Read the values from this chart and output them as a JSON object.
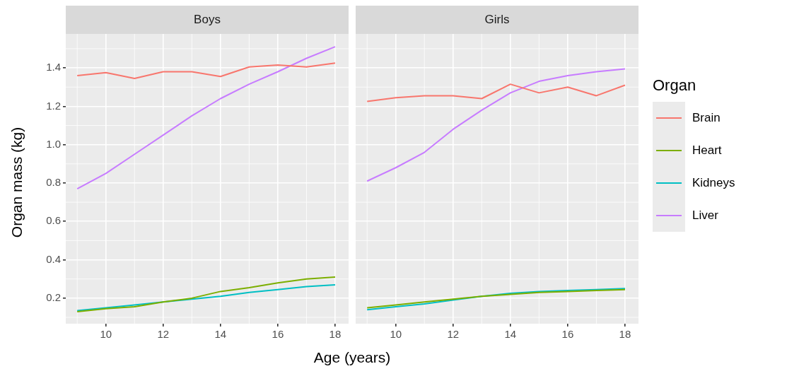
{
  "chart_data": [
    {
      "type": "line",
      "title": "Boys",
      "xlabel": "Age (years)",
      "ylabel": "Organ mass (kg)",
      "x": [
        9,
        10,
        11,
        12,
        13,
        14,
        15,
        16,
        17,
        18
      ],
      "xlim": [
        8.6,
        18.47
      ],
      "ylim": [
        0.067,
        1.577
      ],
      "xticks": [
        10,
        12,
        14,
        16,
        18
      ],
      "yticks": [
        0.2,
        0.4,
        0.6,
        0.8,
        {
          "value": 1.0,
          "label": "1.0"
        },
        1.2,
        1.4
      ],
      "grid": true,
      "marker": "none",
      "legend_title": "Organ",
      "legend": "right",
      "series": [
        {
          "name": "Brain",
          "color": "#f8766d",
          "values": [
            1.36,
            1.375,
            1.345,
            1.38,
            1.38,
            1.355,
            1.405,
            1.415,
            1.405,
            1.425
          ]
        },
        {
          "name": "Heart",
          "color": "#7cae00",
          "values": [
            0.13,
            0.145,
            0.155,
            0.18,
            0.2,
            0.235,
            0.255,
            0.28,
            0.3,
            0.31
          ]
        },
        {
          "name": "Kidneys",
          "color": "#00bfc4",
          "values": [
            0.135,
            0.15,
            0.165,
            0.18,
            0.195,
            0.21,
            0.23,
            0.245,
            0.26,
            0.27
          ]
        },
        {
          "name": "Liver",
          "color": "#c77cff",
          "values": [
            0.77,
            0.85,
            0.95,
            1.05,
            1.15,
            1.24,
            1.315,
            1.38,
            1.45,
            1.51
          ]
        }
      ]
    },
    {
      "type": "line",
      "title": "Girls",
      "tick_labels": "x",
      "x": [
        9,
        10,
        11,
        12,
        13,
        14,
        15,
        16,
        17,
        18
      ],
      "xlim": [
        8.6,
        18.47
      ],
      "ylim": [
        0.067,
        1.577
      ],
      "xticks": [
        10,
        12,
        14,
        16,
        18
      ],
      "grid": true,
      "marker": "none",
      "series": [
        {
          "color": "#f8766d",
          "values": [
            1.225,
            1.245,
            1.255,
            1.255,
            1.24,
            1.315,
            1.27,
            1.3,
            1.255,
            1.31
          ]
        },
        {
          "color": "#7cae00",
          "values": [
            0.15,
            0.165,
            0.18,
            0.195,
            0.21,
            0.22,
            0.23,
            0.235,
            0.24,
            0.245
          ]
        },
        {
          "color": "#00bfc4",
          "values": [
            0.14,
            0.155,
            0.17,
            0.19,
            0.21,
            0.225,
            0.235,
            0.24,
            0.245,
            0.25
          ]
        },
        {
          "color": "#c77cff",
          "values": [
            0.81,
            0.88,
            0.96,
            1.08,
            1.18,
            1.27,
            1.33,
            1.36,
            1.38,
            1.395
          ]
        }
      ]
    }
  ]
}
